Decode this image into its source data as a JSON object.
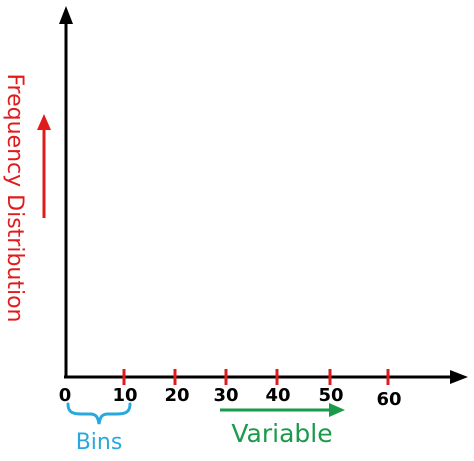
{
  "diagram": {
    "y_axis_label": "Frequency Distribution",
    "tick_labels": [
      "0",
      "10",
      "20",
      "30",
      "40",
      "50",
      "60"
    ],
    "bins_label": "Bins",
    "variable_label": "Variable",
    "colors": {
      "axis": "#000000",
      "tick": "#e11b1b",
      "y_label": "#e11b1b",
      "bins": "#29a8e0",
      "variable": "#1a9a4a"
    }
  }
}
